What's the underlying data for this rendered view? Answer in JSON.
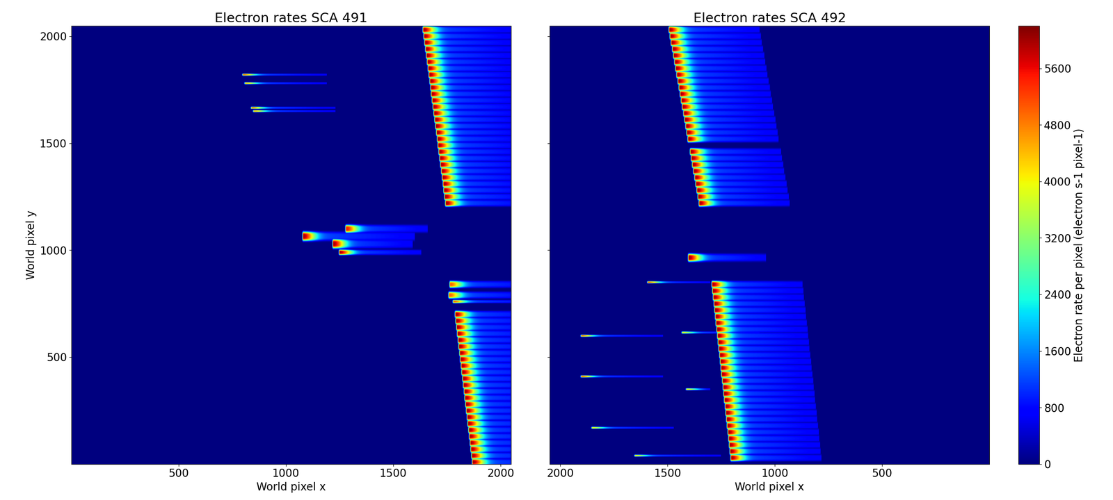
{
  "chart_data": {
    "type": "heatmap",
    "colorbar": {
      "label": "Electron rate per pixel (electron s-1 pixel-1)",
      "range": [
        0,
        6200
      ],
      "ticks": [
        0,
        800,
        1600,
        2400,
        3200,
        4000,
        4800,
        5600
      ]
    },
    "panels": [
      {
        "title": "Electron rates SCA 491",
        "xlabel": "World pixel x",
        "ylabel": "World pixel y",
        "xlim": [
          0,
          2048
        ],
        "ylim": [
          0,
          2048
        ],
        "xticks": [
          500,
          1000,
          1500,
          2000
        ],
        "yticks": [
          500,
          1000,
          1500,
          2000
        ],
        "traces": [
          [
            1640,
            2060,
            2030,
            6000,
            26
          ],
          [
            1644,
            2064,
            2000,
            6000,
            26
          ],
          [
            1648,
            2068,
            1970,
            6000,
            26
          ],
          [
            1652,
            2072,
            1940,
            6000,
            26
          ],
          [
            1656,
            2076,
            1910,
            6000,
            26
          ],
          [
            1660,
            2080,
            1880,
            6000,
            26
          ],
          [
            1664,
            2084,
            1850,
            6000,
            26
          ],
          [
            1668,
            2088,
            1820,
            6000,
            26
          ],
          [
            1672,
            2092,
            1790,
            6000,
            26
          ],
          [
            1676,
            2096,
            1760,
            6000,
            26
          ],
          [
            1679,
            2099,
            1730,
            6000,
            26
          ],
          [
            1683,
            2103,
            1700,
            6000,
            26
          ],
          [
            1687,
            2107,
            1670,
            6000,
            26
          ],
          [
            1691,
            2111,
            1640,
            6000,
            26
          ],
          [
            1695,
            2115,
            1610,
            6000,
            26
          ],
          [
            1699,
            2119,
            1580,
            6000,
            26
          ],
          [
            1703,
            2123,
            1550,
            6000,
            26
          ],
          [
            1707,
            2127,
            1520,
            6000,
            26
          ],
          [
            1710,
            2130,
            1490,
            6000,
            26
          ],
          [
            1714,
            2134,
            1460,
            6000,
            26
          ],
          [
            1718,
            2138,
            1430,
            6000,
            26
          ],
          [
            1722,
            2142,
            1400,
            6000,
            26
          ],
          [
            1726,
            2146,
            1370,
            6000,
            26
          ],
          [
            1730,
            2150,
            1340,
            6000,
            26
          ],
          [
            1734,
            2154,
            1310,
            6000,
            26
          ],
          [
            1737,
            2157,
            1280,
            6000,
            26
          ],
          [
            1741,
            2161,
            1250,
            6000,
            26
          ],
          [
            1745,
            2165,
            1220,
            6000,
            26
          ],
          [
            1765,
            2185,
            840,
            5000,
            26
          ],
          [
            1760,
            2180,
            790,
            5000,
            26
          ],
          [
            1780,
            2200,
            760,
            5000,
            12
          ],
          [
            1790,
            2210,
            700,
            6000,
            26
          ],
          [
            1793,
            2213,
            670,
            6000,
            26
          ],
          [
            1797,
            2217,
            640,
            6000,
            26
          ],
          [
            1800,
            2220,
            610,
            6000,
            26
          ],
          [
            1804,
            2224,
            580,
            6000,
            26
          ],
          [
            1807,
            2227,
            550,
            6000,
            26
          ],
          [
            1811,
            2231,
            520,
            6000,
            26
          ],
          [
            1814,
            2234,
            490,
            6000,
            26
          ],
          [
            1818,
            2238,
            460,
            6000,
            26
          ],
          [
            1821,
            2241,
            430,
            6000,
            26
          ],
          [
            1825,
            2245,
            400,
            6000,
            26
          ],
          [
            1828,
            2248,
            370,
            6000,
            26
          ],
          [
            1832,
            2252,
            340,
            6000,
            26
          ],
          [
            1835,
            2255,
            310,
            6000,
            26
          ],
          [
            1839,
            2259,
            280,
            6000,
            26
          ],
          [
            1842,
            2262,
            250,
            6000,
            26
          ],
          [
            1846,
            2266,
            220,
            6000,
            26
          ],
          [
            1849,
            2269,
            190,
            6000,
            26
          ],
          [
            1853,
            2273,
            160,
            6000,
            26
          ],
          [
            1856,
            2276,
            130,
            6000,
            26
          ],
          [
            1860,
            2280,
            100,
            6000,
            26
          ],
          [
            1863,
            2283,
            70,
            6000,
            26
          ],
          [
            1867,
            2287,
            40,
            6000,
            26
          ],
          [
            1870,
            2290,
            10,
            6000,
            26
          ],
          [
            800,
            1190,
            1820,
            5000,
            8
          ],
          [
            810,
            1190,
            1780,
            4500,
            8
          ],
          [
            840,
            1230,
            1665,
            5000,
            8
          ],
          [
            850,
            1230,
            1650,
            4500,
            8
          ],
          [
            1280,
            1660,
            1100,
            5500,
            30
          ],
          [
            1080,
            1600,
            1065,
            6000,
            35
          ],
          [
            1220,
            1590,
            1030,
            6000,
            35
          ],
          [
            1250,
            1630,
            990,
            6000,
            20
          ]
        ]
      },
      {
        "title": "Electron rates SCA 492",
        "xlabel": "World pixel x",
        "xlim": [
          2048,
          0
        ],
        "ylim": [
          0,
          2048
        ],
        "xticks": [
          2000,
          1500,
          1000,
          500
        ],
        "yticks": [
          500,
          1000,
          1500,
          2000
        ],
        "tick_labels": "x",
        "traces": [
          [
            1490,
            1070,
            2030,
            6000,
            26
          ],
          [
            1485,
            1065,
            2000,
            6000,
            26
          ],
          [
            1480,
            1060,
            1970,
            6000,
            26
          ],
          [
            1474,
            1054,
            1940,
            6000,
            26
          ],
          [
            1469,
            1049,
            1910,
            6000,
            26
          ],
          [
            1464,
            1044,
            1880,
            6000,
            26
          ],
          [
            1459,
            1039,
            1850,
            6000,
            26
          ],
          [
            1454,
            1034,
            1820,
            6000,
            26
          ],
          [
            1448,
            1028,
            1790,
            6000,
            26
          ],
          [
            1443,
            1023,
            1760,
            6000,
            26
          ],
          [
            1438,
            1018,
            1730,
            6000,
            26
          ],
          [
            1433,
            1013,
            1700,
            6000,
            26
          ],
          [
            1428,
            1008,
            1670,
            6000,
            26
          ],
          [
            1422,
            1002,
            1640,
            6000,
            26
          ],
          [
            1417,
            997,
            1610,
            6000,
            26
          ],
          [
            1412,
            992,
            1580,
            6000,
            26
          ],
          [
            1407,
            987,
            1550,
            6000,
            26
          ],
          [
            1402,
            982,
            1520,
            6000,
            26
          ],
          [
            1391,
            971,
            1460,
            6000,
            26
          ],
          [
            1386,
            966,
            1430,
            6000,
            26
          ],
          [
            1381,
            961,
            1400,
            6000,
            26
          ],
          [
            1376,
            956,
            1370,
            6000,
            26
          ],
          [
            1370,
            950,
            1340,
            6000,
            26
          ],
          [
            1365,
            945,
            1310,
            6000,
            26
          ],
          [
            1360,
            940,
            1280,
            6000,
            26
          ],
          [
            1355,
            935,
            1250,
            6000,
            26
          ],
          [
            1350,
            930,
            1220,
            6000,
            26
          ],
          [
            1400,
            1040,
            965,
            6000,
            30
          ],
          [
            1290,
            870,
            840,
            6000,
            26
          ],
          [
            1287,
            867,
            810,
            6000,
            26
          ],
          [
            1284,
            864,
            780,
            6000,
            26
          ],
          [
            1280,
            860,
            750,
            6000,
            26
          ],
          [
            1277,
            857,
            720,
            6000,
            26
          ],
          [
            1274,
            854,
            690,
            6000,
            26
          ],
          [
            1271,
            851,
            660,
            6000,
            26
          ],
          [
            1267,
            847,
            630,
            6000,
            26
          ],
          [
            1264,
            844,
            600,
            6000,
            26
          ],
          [
            1261,
            841,
            570,
            6000,
            26
          ],
          [
            1258,
            838,
            540,
            6000,
            26
          ],
          [
            1254,
            834,
            510,
            6000,
            26
          ],
          [
            1251,
            831,
            480,
            6000,
            26
          ],
          [
            1248,
            828,
            450,
            6000,
            26
          ],
          [
            1245,
            825,
            420,
            6000,
            26
          ],
          [
            1241,
            821,
            390,
            6000,
            26
          ],
          [
            1238,
            818,
            360,
            6000,
            26
          ],
          [
            1235,
            815,
            330,
            6000,
            26
          ],
          [
            1232,
            812,
            300,
            6000,
            26
          ],
          [
            1228,
            808,
            270,
            6000,
            26
          ],
          [
            1225,
            805,
            240,
            6000,
            26
          ],
          [
            1222,
            802,
            210,
            6000,
            26
          ],
          [
            1219,
            799,
            180,
            6000,
            26
          ],
          [
            1215,
            795,
            150,
            6000,
            26
          ],
          [
            1212,
            792,
            120,
            6000,
            26
          ],
          [
            1209,
            789,
            90,
            6000,
            26
          ],
          [
            1206,
            786,
            60,
            6000,
            26
          ],
          [
            1202,
            782,
            30,
            6000,
            26
          ],
          [
            1590,
            1300,
            850,
            5000,
            8
          ],
          [
            1900,
            1520,
            600,
            5000,
            8
          ],
          [
            1430,
            1070,
            615,
            4000,
            8
          ],
          [
            1900,
            1520,
            410,
            5000,
            8
          ],
          [
            1410,
            1300,
            350,
            4000,
            8
          ],
          [
            1850,
            1470,
            170,
            4000,
            8
          ],
          [
            1650,
            1250,
            40,
            4000,
            8
          ]
        ]
      }
    ]
  }
}
